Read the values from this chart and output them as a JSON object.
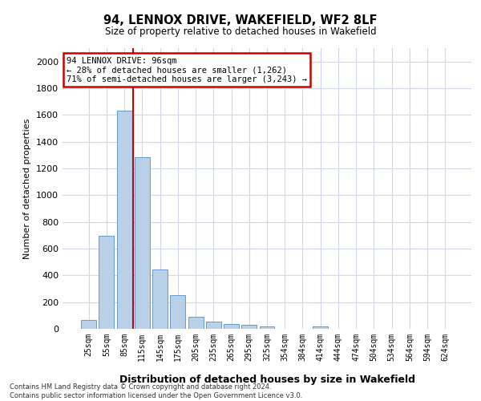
{
  "title": "94, LENNOX DRIVE, WAKEFIELD, WF2 8LF",
  "subtitle": "Size of property relative to detached houses in Wakefield",
  "xlabel": "Distribution of detached houses by size in Wakefield",
  "ylabel": "Number of detached properties",
  "categories": [
    "25sqm",
    "55sqm",
    "85sqm",
    "115sqm",
    "145sqm",
    "175sqm",
    "205sqm",
    "235sqm",
    "265sqm",
    "295sqm",
    "325sqm",
    "354sqm",
    "384sqm",
    "414sqm",
    "444sqm",
    "474sqm",
    "504sqm",
    "534sqm",
    "564sqm",
    "594sqm",
    "624sqm"
  ],
  "values": [
    65,
    695,
    1635,
    1285,
    445,
    255,
    90,
    55,
    35,
    28,
    20,
    0,
    0,
    18,
    0,
    0,
    0,
    0,
    0,
    0,
    0
  ],
  "bar_color": "#b8d0e8",
  "bar_edge_color": "#6699cc",
  "red_line_x": 2.5,
  "annotation_title": "94 LENNOX DRIVE: 96sqm",
  "annotation_line1": "← 28% of detached houses are smaller (1,262)",
  "annotation_line2": "71% of semi-detached houses are larger (3,243) →",
  "annotation_box_color": "#ffffff",
  "annotation_box_edge": "#cc0000",
  "ylim": [
    0,
    2100
  ],
  "yticks": [
    0,
    200,
    400,
    600,
    800,
    1000,
    1200,
    1400,
    1600,
    1800,
    2000
  ],
  "footer_line1": "Contains HM Land Registry data © Crown copyright and database right 2024.",
  "footer_line2": "Contains public sector information licensed under the Open Government Licence v3.0.",
  "background_color": "#ffffff",
  "grid_color": "#d0d8e8"
}
